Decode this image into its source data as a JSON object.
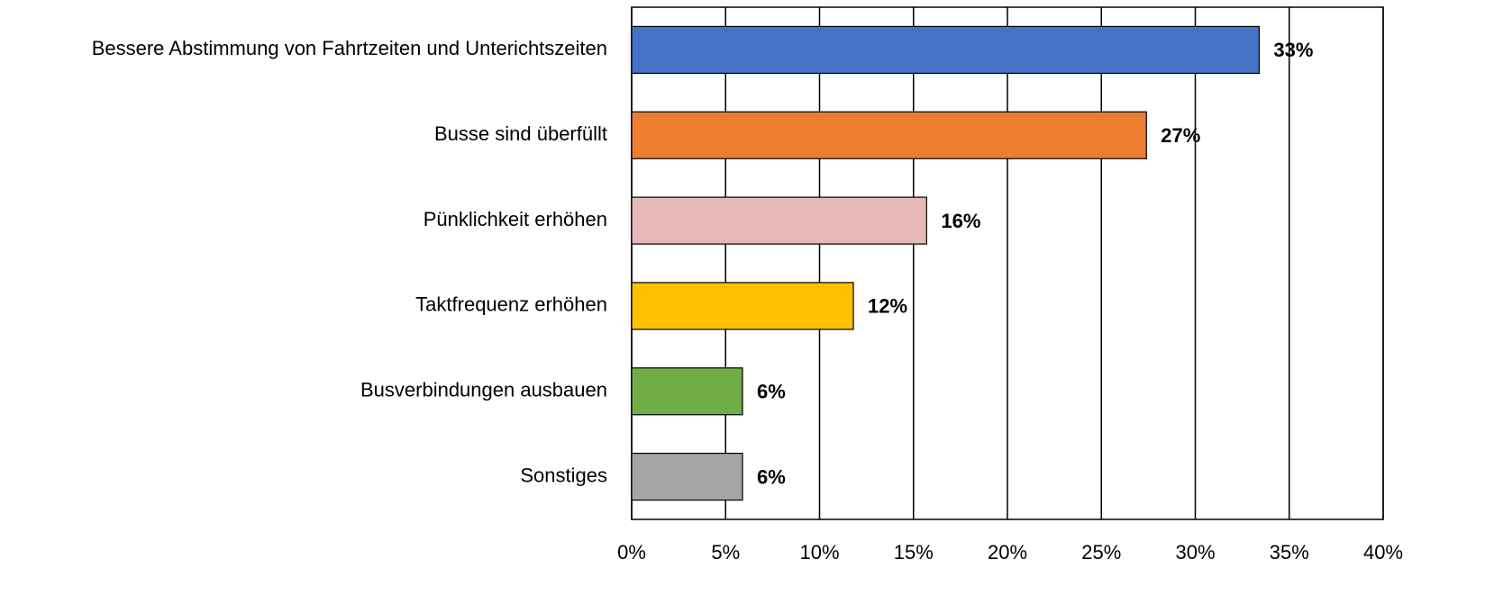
{
  "chart_data": {
    "type": "bar",
    "orientation": "horizontal",
    "categories": [
      "Bessere Abstimmung von Fahrtzeiten und Unterichtszeiten",
      "Busse sind überfüllt",
      "Pünklichkeit erhöhen",
      "Taktfrequenz erhöhen",
      "Busverbindungen ausbauen",
      "Sonstiges"
    ],
    "values": [
      33.4,
      27.4,
      15.7,
      11.8,
      5.9,
      5.9
    ],
    "value_labels": [
      "33%",
      "27%",
      "16%",
      "12%",
      "6%",
      "6%"
    ],
    "colors": [
      "#4472c4",
      "#ed7d31",
      "#e6b8b7",
      "#ffc000",
      "#70ad47",
      "#a5a5a5"
    ],
    "xlim": [
      0,
      40
    ],
    "xticks": [
      {
        "value": 0,
        "label": "0%"
      },
      {
        "value": 5,
        "label": "5%"
      },
      {
        "value": 10,
        "label": "10%"
      },
      {
        "value": 15,
        "label": "15%"
      },
      {
        "value": 20,
        "label": "20%"
      },
      {
        "value": 25,
        "label": "25%"
      },
      {
        "value": 30,
        "label": "30%"
      },
      {
        "value": 35,
        "label": "35%"
      },
      {
        "value": 40,
        "label": "40%"
      }
    ],
    "grid": true
  }
}
